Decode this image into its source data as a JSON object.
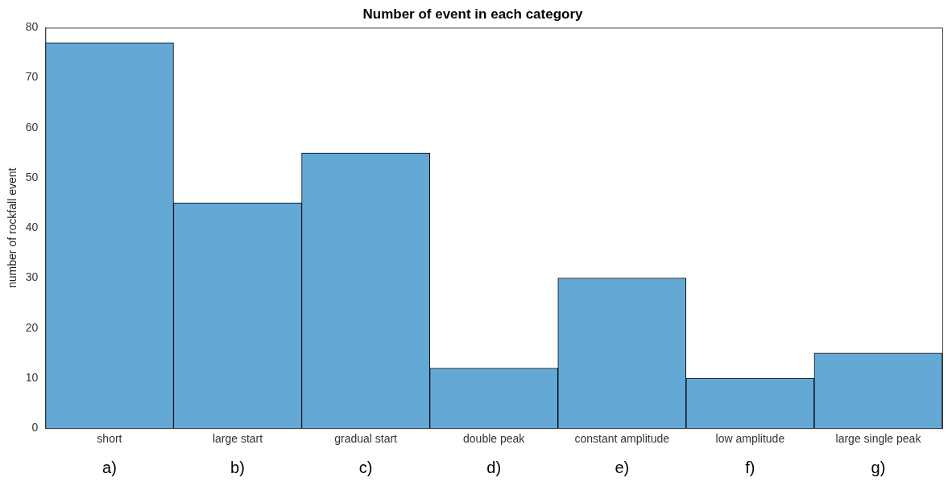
{
  "chart_data": {
    "type": "bar",
    "title": "Number of event in each category",
    "ylabel": "number of rockfall event",
    "categories": [
      "short",
      "large start",
      "gradual start",
      "double peak",
      "constant amplitude",
      "low amplitude",
      "large single peak"
    ],
    "values": [
      77,
      45,
      55,
      12,
      30,
      10,
      15
    ],
    "color": "#64a8d6",
    "ylim": [
      0,
      80
    ],
    "yticks": [
      0,
      10,
      20,
      30,
      40,
      50,
      60,
      70,
      80
    ],
    "grid": false,
    "legend": false,
    "annotations": [
      "a)",
      "b)",
      "c)",
      "d)",
      "e)",
      "f)",
      "g)"
    ]
  }
}
